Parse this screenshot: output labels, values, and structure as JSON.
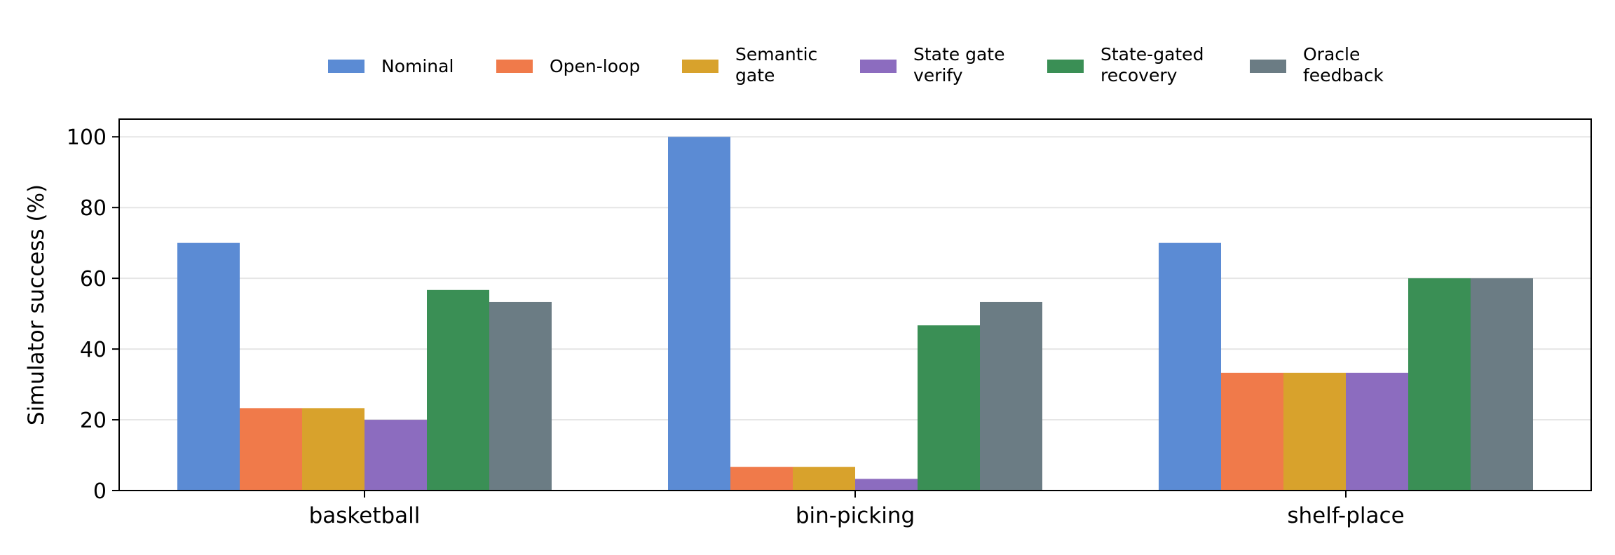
{
  "chart_data": {
    "type": "bar",
    "title": "",
    "xlabel": "",
    "ylabel": "Simulator success (%)",
    "categories": [
      "basketball",
      "bin-picking",
      "shelf-place"
    ],
    "ylim": [
      0,
      105
    ],
    "yticks": [
      0,
      20,
      40,
      60,
      80,
      100
    ],
    "grid": "horizontal",
    "legend_position": "top-center",
    "series": [
      {
        "name": "Nominal",
        "legend_lines": [
          "Nominal"
        ],
        "color": "#5b8bd4",
        "values": [
          70,
          100,
          70
        ]
      },
      {
        "name": "Open-loop",
        "legend_lines": [
          "Open-loop"
        ],
        "color": "#f07a4a",
        "values": [
          23.3,
          6.7,
          33.3
        ]
      },
      {
        "name": "Semantic gate",
        "legend_lines": [
          "Semantic",
          "gate"
        ],
        "color": "#d8a22c",
        "values": [
          23.3,
          6.7,
          33.3
        ]
      },
      {
        "name": "State gate verify",
        "legend_lines": [
          "State gate",
          "verify"
        ],
        "color": "#8c6cbf",
        "values": [
          20,
          3.3,
          33.3
        ]
      },
      {
        "name": "State-gated recovery",
        "legend_lines": [
          "State-gated",
          "recovery"
        ],
        "color": "#3a8f55",
        "values": [
          56.7,
          46.7,
          60
        ]
      },
      {
        "name": "Oracle feedback",
        "legend_lines": [
          "Oracle",
          "feedback"
        ],
        "color": "#6b7c84",
        "values": [
          53.3,
          53.3,
          60
        ]
      }
    ]
  }
}
